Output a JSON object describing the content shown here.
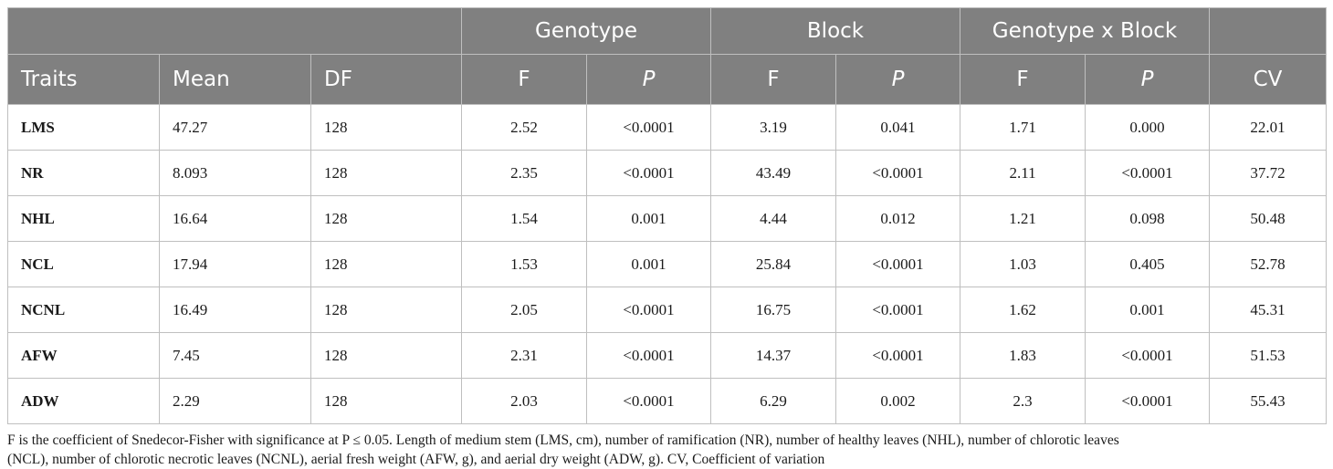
{
  "table": {
    "group_headers": {
      "genotype": "Genotype",
      "block": "Block",
      "interaction": "Genotype x Block"
    },
    "column_headers": {
      "traits": "Traits",
      "mean": "Mean",
      "df": "DF",
      "genotype_f": "F",
      "genotype_p": "P",
      "block_f": "F",
      "block_p": "P",
      "interaction_f": "F",
      "interaction_p": "P",
      "cv": "CV"
    },
    "rows": [
      {
        "trait": "LMS",
        "mean": "47.27",
        "df": "128",
        "gf": "2.52",
        "gp": "<0.0001",
        "bf": "3.19",
        "bp": "0.041",
        "if": "1.71",
        "ip": "0.000",
        "cv": "22.01"
      },
      {
        "trait": "NR",
        "mean": "8.093",
        "df": "128",
        "gf": "2.35",
        "gp": "<0.0001",
        "bf": "43.49",
        "bp": "<0.0001",
        "if": "2.11",
        "ip": "<0.0001",
        "cv": "37.72"
      },
      {
        "trait": "NHL",
        "mean": "16.64",
        "df": "128",
        "gf": "1.54",
        "gp": "0.001",
        "bf": "4.44",
        "bp": "0.012",
        "if": "1.21",
        "ip": "0.098",
        "cv": "50.48"
      },
      {
        "trait": "NCL",
        "mean": "17.94",
        "df": "128",
        "gf": "1.53",
        "gp": "0.001",
        "bf": "25.84",
        "bp": "<0.0001",
        "if": "1.03",
        "ip": "0.405",
        "cv": "52.78"
      },
      {
        "trait": "NCNL",
        "mean": "16.49",
        "df": "128",
        "gf": "2.05",
        "gp": "<0.0001",
        "bf": "16.75",
        "bp": "<0.0001",
        "if": "1.62",
        "ip": "0.001",
        "cv": "45.31"
      },
      {
        "trait": "AFW",
        "mean": "7.45",
        "df": "128",
        "gf": "2.31",
        "gp": "<0.0001",
        "bf": "14.37",
        "bp": "<0.0001",
        "if": "1.83",
        "ip": "<0.0001",
        "cv": "51.53"
      },
      {
        "trait": "ADW",
        "mean": "2.29",
        "df": "128",
        "gf": "2.03",
        "gp": "<0.0001",
        "bf": "6.29",
        "bp": "0.002",
        "if": "2.3",
        "ip": "<0.0001",
        "cv": "55.43"
      }
    ]
  },
  "footnote": {
    "line1": "F is the coefficient of Snedecor-Fisher with significance at P ≤ 0.05. Length of medium stem (LMS, cm), number of ramification (NR), number of healthy leaves (NHL), number of chlorotic leaves",
    "line2": "(NCL), number of chlorotic necrotic leaves (NCNL), aerial fresh weight (AFW, g), and aerial dry weight (ADW, g). CV, Coefficient of variation"
  }
}
